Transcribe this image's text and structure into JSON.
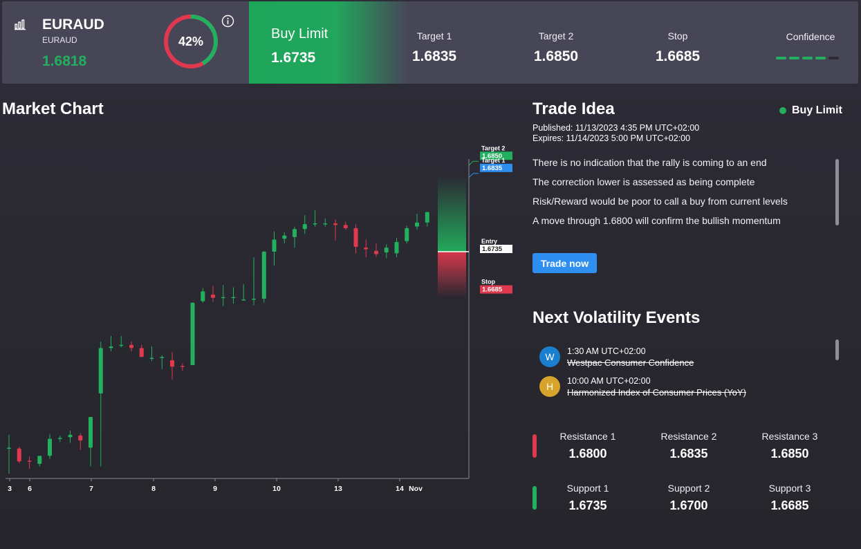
{
  "header": {
    "symbol": "EURAUD",
    "symbol_sub": "EURAUD",
    "price": "1.6818",
    "gauge_percent": 42,
    "gauge_label": "42%",
    "signal_type": "Buy Limit",
    "signal_price": "1.6735",
    "columns": [
      {
        "label": "Target 1",
        "value": "1.6835"
      },
      {
        "label": "Target 2",
        "value": "1.6850"
      },
      {
        "label": "Stop",
        "value": "1.6685"
      }
    ],
    "confidence_label": "Confidence",
    "confidence_level": 4,
    "confidence_max": 5,
    "colors": {
      "green": "#22b05e",
      "red": "#e0394d",
      "panel": "#474657"
    }
  },
  "chart": {
    "title": "Market Chart",
    "chart_data": {
      "type": "candlestick",
      "x_ticks": [
        "3",
        "6",
        "7",
        "8",
        "9",
        "10",
        "13",
        "14",
        "Nov"
      ],
      "ylim": [
        1.6455,
        1.6875
      ],
      "candles": [
        {
          "o": 1.6492,
          "h": 1.6509,
          "l": 1.6461,
          "c": 1.6493
        },
        {
          "o": 1.6492,
          "h": 1.6494,
          "l": 1.6474,
          "c": 1.6476
        },
        {
          "o": 1.6477,
          "h": 1.6482,
          "l": 1.6467,
          "c": 1.6476
        },
        {
          "o": 1.6473,
          "h": 1.6483,
          "l": 1.647,
          "c": 1.6483
        },
        {
          "o": 1.6483,
          "h": 1.651,
          "l": 1.6479,
          "c": 1.6504
        },
        {
          "o": 1.6504,
          "h": 1.6508,
          "l": 1.65,
          "c": 1.6505
        },
        {
          "o": 1.6506,
          "h": 1.6514,
          "l": 1.6499,
          "c": 1.6509
        },
        {
          "o": 1.6508,
          "h": 1.6511,
          "l": 1.649,
          "c": 1.6502
        },
        {
          "o": 1.6493,
          "h": 1.6531,
          "l": 1.647,
          "c": 1.6531
        },
        {
          "o": 1.656,
          "h": 1.6624,
          "l": 1.647,
          "c": 1.6616
        },
        {
          "o": 1.6616,
          "h": 1.6631,
          "l": 1.6612,
          "c": 1.6618
        },
        {
          "o": 1.6619,
          "h": 1.6631,
          "l": 1.6617,
          "c": 1.662
        },
        {
          "o": 1.662,
          "h": 1.6624,
          "l": 1.6612,
          "c": 1.6616
        },
        {
          "o": 1.6616,
          "h": 1.662,
          "l": 1.6605,
          "c": 1.6605
        },
        {
          "o": 1.6604,
          "h": 1.6618,
          "l": 1.66,
          "c": 1.6604
        },
        {
          "o": 1.6605,
          "h": 1.6607,
          "l": 1.659,
          "c": 1.6605
        },
        {
          "o": 1.6601,
          "h": 1.6611,
          "l": 1.6577,
          "c": 1.6593
        },
        {
          "o": 1.6594,
          "h": 1.6597,
          "l": 1.6588,
          "c": 1.6593
        },
        {
          "o": 1.6595,
          "h": 1.6672,
          "l": 1.6595,
          "c": 1.6672
        },
        {
          "o": 1.6674,
          "h": 1.669,
          "l": 1.6672,
          "c": 1.6686
        },
        {
          "o": 1.6682,
          "h": 1.6693,
          "l": 1.6673,
          "c": 1.6678
        },
        {
          "o": 1.6679,
          "h": 1.6694,
          "l": 1.6668,
          "c": 1.6679
        },
        {
          "o": 1.6679,
          "h": 1.6691,
          "l": 1.6671,
          "c": 1.6679
        },
        {
          "o": 1.6675,
          "h": 1.6695,
          "l": 1.6675,
          "c": 1.6676
        },
        {
          "o": 1.6676,
          "h": 1.6728,
          "l": 1.6669,
          "c": 1.6677
        },
        {
          "o": 1.6677,
          "h": 1.6736,
          "l": 1.6672,
          "c": 1.6735
        },
        {
          "o": 1.6735,
          "h": 1.676,
          "l": 1.6718,
          "c": 1.675
        },
        {
          "o": 1.6751,
          "h": 1.6759,
          "l": 1.6745,
          "c": 1.6755
        },
        {
          "o": 1.6753,
          "h": 1.6766,
          "l": 1.674,
          "c": 1.6763
        },
        {
          "o": 1.6763,
          "h": 1.678,
          "l": 1.6757,
          "c": 1.6769
        },
        {
          "o": 1.6769,
          "h": 1.6786,
          "l": 1.6766,
          "c": 1.677
        },
        {
          "o": 1.677,
          "h": 1.6776,
          "l": 1.6766,
          "c": 1.677
        },
        {
          "o": 1.677,
          "h": 1.6775,
          "l": 1.6749,
          "c": 1.6768
        },
        {
          "o": 1.6768,
          "h": 1.6772,
          "l": 1.6762,
          "c": 1.6764
        },
        {
          "o": 1.6764,
          "h": 1.6769,
          "l": 1.6733,
          "c": 1.6741
        },
        {
          "o": 1.674,
          "h": 1.675,
          "l": 1.6728,
          "c": 1.6738
        },
        {
          "o": 1.6736,
          "h": 1.6745,
          "l": 1.6729,
          "c": 1.6732
        },
        {
          "o": 1.6734,
          "h": 1.6744,
          "l": 1.6727,
          "c": 1.674
        },
        {
          "o": 1.6733,
          "h": 1.6752,
          "l": 1.6728,
          "c": 1.6747
        },
        {
          "o": 1.6748,
          "h": 1.6767,
          "l": 1.6745,
          "c": 1.6764
        },
        {
          "o": 1.6766,
          "h": 1.6782,
          "l": 1.6762,
          "c": 1.6771
        },
        {
          "o": 1.6771,
          "h": 1.6784,
          "l": 1.6766,
          "c": 1.6784
        }
      ],
      "levels": [
        {
          "name": "Target 2",
          "label": "Target 2",
          "value": 1.685,
          "value_label": "1.6850",
          "color": "#22b05e"
        },
        {
          "name": "Target 1",
          "label": "Target 1",
          "value": 1.6835,
          "value_label": "1.6835",
          "color": "#2f8ff0"
        },
        {
          "name": "Entry",
          "label": "Entry",
          "value": 1.6735,
          "value_label": "1.6735",
          "color": "#ffffff"
        },
        {
          "name": "Stop",
          "label": "Stop",
          "value": 1.6685,
          "value_label": "1.6685",
          "color": "#e0394d"
        }
      ]
    }
  },
  "trade_idea": {
    "title": "Trade Idea",
    "status": "Buy Limit",
    "published": "Published:  11/13/2023 4:35 PM UTC+02:00",
    "expires": "Expires:  11/14/2023 5:00 PM UTC+02:00",
    "points": [
      "There is no indication that the rally is coming to an end",
      "The correction lower is assessed as being complete",
      "Risk/Reward would be poor to call a buy from current levels",
      "A move through 1.6800 will confirm the bullish momentum"
    ],
    "button": "Trade now"
  },
  "volatility": {
    "title": "Next Volatility Events",
    "events": [
      {
        "badge": "W",
        "badge_color": "#1a7fcf",
        "time": "1:30 AM UTC+02:00",
        "name": "Westpac Consumer Confidence"
      },
      {
        "badge": "H",
        "badge_color": "#d7a32b",
        "time": "10:00 AM UTC+02:00",
        "name": "Harmonized Index of Consumer Prices (YoY)"
      }
    ]
  },
  "levels": {
    "resistance": [
      {
        "label": "Resistance 1",
        "value": "1.6800"
      },
      {
        "label": "Resistance 2",
        "value": "1.6835"
      },
      {
        "label": "Resistance 3",
        "value": "1.6850"
      }
    ],
    "support": [
      {
        "label": "Support 1",
        "value": "1.6735"
      },
      {
        "label": "Support 2",
        "value": "1.6700"
      },
      {
        "label": "Support 3",
        "value": "1.6685"
      }
    ]
  }
}
